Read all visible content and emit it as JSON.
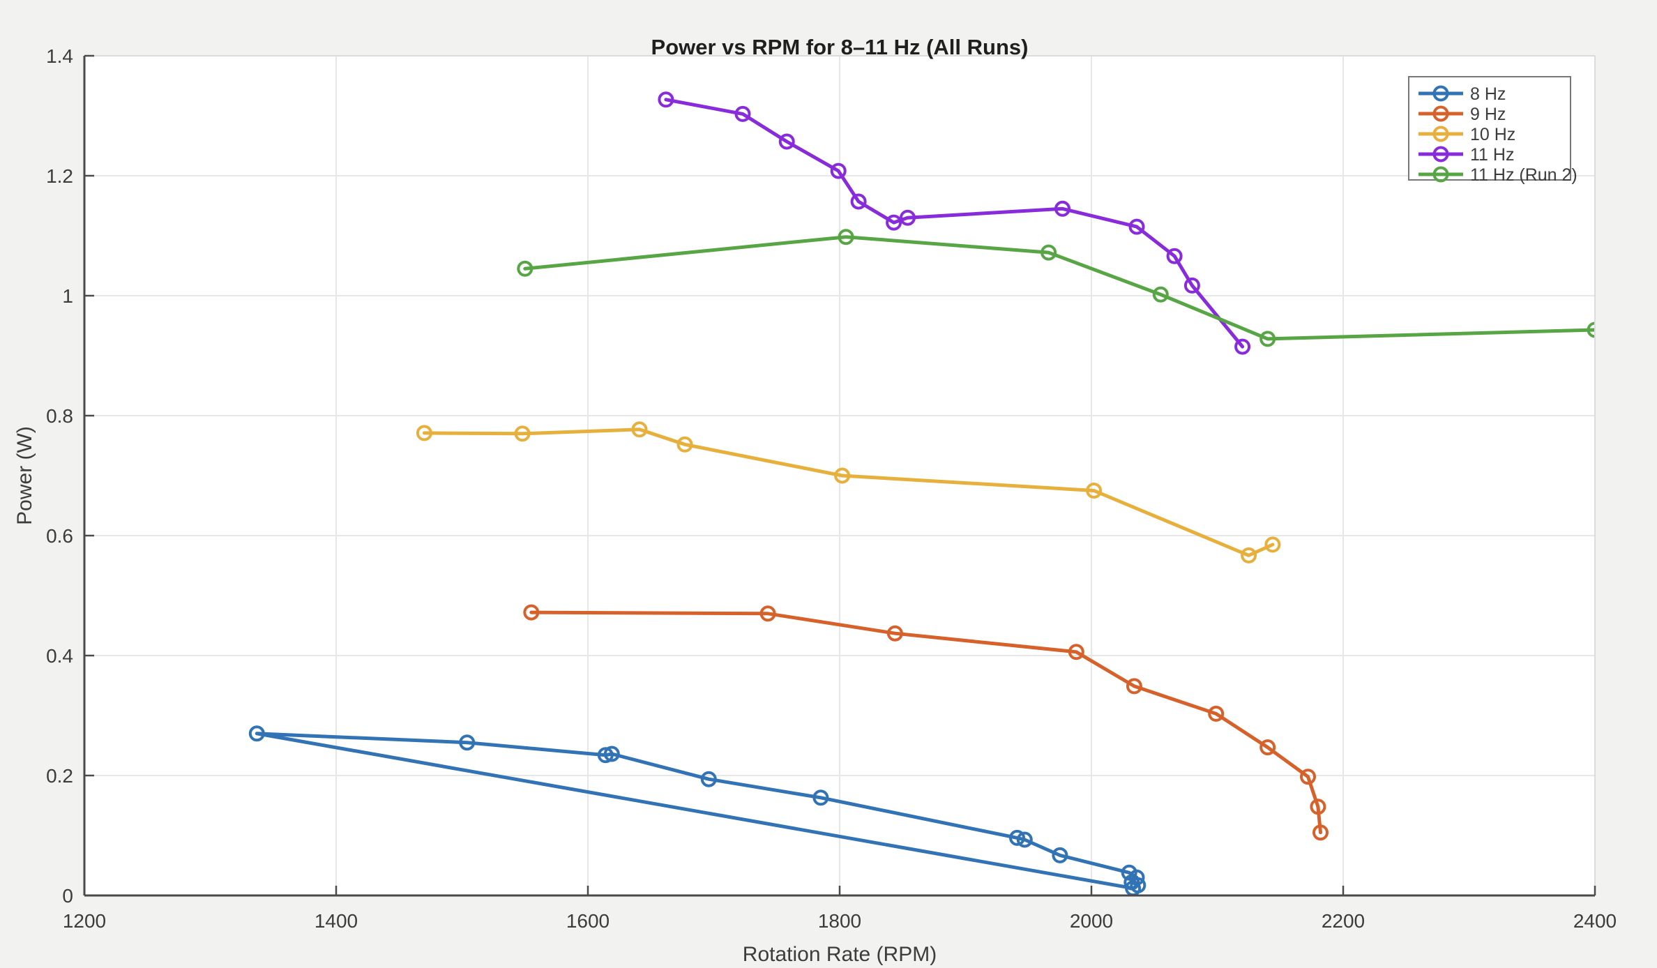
{
  "chart_data": {
    "type": "line",
    "title": "Power vs RPM for 8–11 Hz (All Runs)",
    "xlabel": "Rotation Rate (RPM)",
    "ylabel": "Power (W)",
    "xlim": [
      1200,
      2400
    ],
    "ylim": [
      0,
      1.4
    ],
    "xticks": [
      1200,
      1400,
      1600,
      1800,
      2000,
      2200,
      2400
    ],
    "yticks": [
      0,
      0.2,
      0.4,
      0.6,
      0.8,
      1,
      1.2,
      1.4
    ],
    "ytick_labels": [
      "0",
      "0.2",
      "0.4",
      "0.6",
      "0.8",
      "1",
      "1.2",
      "1.4"
    ],
    "grid": true,
    "legend_position": "top-right",
    "legend_entries": [
      "8 Hz",
      "9 Hz",
      "10 Hz",
      "11 Hz",
      "11 Hz (Run 2)"
    ],
    "style": {
      "figure_background": "#F2F2F1",
      "plot_background": "#FFFFFF",
      "grid_color": "#E7E7E7",
      "axis_color": "#4A4A4A",
      "box_light_color": "#DBDBDB",
      "tick_text_color": "#3C3C3C",
      "legend_border_color": "#787878",
      "marker_style": "open-circle"
    },
    "series": [
      {
        "name": "8 Hz",
        "color": "#3173B4",
        "close_loop_to_first_point": true,
        "points": [
          [
            1337,
            0.27
          ],
          [
            1504,
            0.255
          ],
          [
            1614,
            0.234
          ],
          [
            1619,
            0.236
          ],
          [
            1696,
            0.194
          ],
          [
            1785,
            0.163
          ],
          [
            1941,
            0.096
          ],
          [
            1947,
            0.093
          ],
          [
            1975,
            0.067
          ],
          [
            2030,
            0.038
          ],
          [
            2036,
            0.03
          ],
          [
            2032,
            0.022
          ],
          [
            2037,
            0.017
          ],
          [
            2033,
            0.012
          ]
        ]
      },
      {
        "name": "9 Hz",
        "color": "#D6612A",
        "close_loop_to_first_point": false,
        "points": [
          [
            1555,
            0.472
          ],
          [
            1743,
            0.47
          ],
          [
            1844,
            0.437
          ],
          [
            1988,
            0.406
          ],
          [
            2034,
            0.349
          ],
          [
            2099,
            0.303
          ],
          [
            2140,
            0.247
          ],
          [
            2172,
            0.198
          ],
          [
            2180,
            0.148
          ],
          [
            2182,
            0.105
          ]
        ]
      },
      {
        "name": "10 Hz",
        "color": "#E7B03C",
        "close_loop_to_first_point": false,
        "points": [
          [
            1470,
            0.771
          ],
          [
            1548,
            0.77
          ],
          [
            1641,
            0.777
          ],
          [
            1677,
            0.752
          ],
          [
            1802,
            0.7
          ],
          [
            2002,
            0.675
          ],
          [
            2125,
            0.567
          ],
          [
            2144,
            0.585
          ]
        ]
      },
      {
        "name": "11 Hz",
        "color": "#882BDB",
        "close_loop_to_first_point": false,
        "points": [
          [
            1662,
            1.327
          ],
          [
            1723,
            1.303
          ],
          [
            1758,
            1.257
          ],
          [
            1799,
            1.208
          ],
          [
            1815,
            1.157
          ],
          [
            1843,
            1.122
          ],
          [
            1854,
            1.13
          ],
          [
            1977,
            1.145
          ],
          [
            2036,
            1.115
          ],
          [
            2066,
            1.066
          ],
          [
            2080,
            1.017
          ],
          [
            2120,
            0.915
          ]
        ]
      },
      {
        "name": "11 Hz (Run 2)",
        "color": "#57A544",
        "close_loop_to_first_point": false,
        "points": [
          [
            1550,
            1.045
          ],
          [
            1805,
            1.098
          ],
          [
            1966,
            1.072
          ],
          [
            2055,
            1.002
          ],
          [
            2140,
            0.928
          ],
          [
            2400,
            0.943
          ]
        ]
      }
    ]
  }
}
